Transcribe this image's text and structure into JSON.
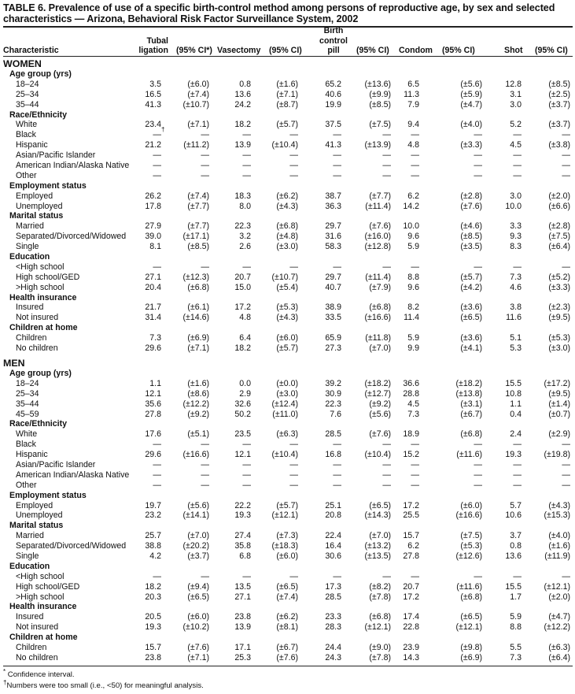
{
  "title": "TABLE 6. Prevalence of use of a specific birth-control method among persons of reproductive age, by sex and selected characteristics — Arizona, Behavioral Risk Factor Surveillance System, 2002",
  "headers": {
    "characteristic": "Characteristic",
    "tubal_1": "Tubal",
    "tubal_2": "ligation",
    "ci_first": "(95% CI*)",
    "vasectomy": "Vasectomy",
    "ci": "(95% CI)",
    "pill_1": "Birth",
    "pill_2": "control",
    "pill_3": "pill",
    "condom": "Condom",
    "shot": "Shot"
  },
  "sections": [
    {
      "title": "WOMEN",
      "groups": [
        {
          "label": "Age group (yrs)",
          "rows": [
            {
              "label": "18–24",
              "values": [
                "3.5",
                "(±6.0)",
                "0.8",
                "(±1.6)",
                "65.2",
                "(±13.6)",
                "6.5",
                "(±5.6)",
                "12.8",
                "(±8.5)"
              ]
            },
            {
              "label": "25–34",
              "values": [
                "16.5",
                "(±7.4)",
                "13.6",
                "(±7.1)",
                "40.6",
                "(±9.9)",
                "11.3",
                "(±5.9)",
                "3.1",
                "(±2.5)"
              ]
            },
            {
              "label": "35–44",
              "values": [
                "41.3",
                "(±10.7)",
                "24.2",
                "(±8.7)",
                "19.9",
                "(±8.5)",
                "7.9",
                "(±4.7)",
                "3.0",
                "(±3.7)"
              ]
            }
          ]
        },
        {
          "label": "Race/Ethnicity",
          "rows": [
            {
              "label": "White",
              "values": [
                "23.4",
                "(±7.1)",
                "18.2",
                "(±5.7)",
                "37.5",
                "(±7.5)",
                "9.4",
                "(±4.0)",
                "5.2",
                "(±3.7)"
              ]
            },
            {
              "label": "Black",
              "values": [
                "—",
                "—",
                "—",
                "—",
                "—",
                "—",
                "—",
                "—",
                "—",
                "—"
              ],
              "mark": "†"
            },
            {
              "label": "Hispanic",
              "values": [
                "21.2",
                "(±11.2)",
                "13.9",
                "(±10.4)",
                "41.3",
                "(±13.9)",
                "4.8",
                "(±3.3)",
                "4.5",
                "(±3.8)"
              ]
            },
            {
              "label": "Asian/Pacific Islander",
              "values": [
                "—",
                "—",
                "—",
                "—",
                "—",
                "—",
                "—",
                "—",
                "—",
                "—"
              ]
            },
            {
              "label": "American Indian/Alaska Native",
              "values": [
                "—",
                "—",
                "—",
                "—",
                "—",
                "—",
                "—",
                "—",
                "—",
                "—"
              ]
            },
            {
              "label": "Other",
              "values": [
                "—",
                "—",
                "—",
                "—",
                "—",
                "—",
                "—",
                "—",
                "—",
                "—"
              ]
            }
          ]
        },
        {
          "label": "Employment status",
          "rows": [
            {
              "label": "Employed",
              "values": [
                "26.2",
                "(±7.4)",
                "18.3",
                "(±6.2)",
                "38.7",
                "(±7.7)",
                "6.2",
                "(±2.8)",
                "3.0",
                "(±2.0)"
              ]
            },
            {
              "label": "Unemployed",
              "values": [
                "17.8",
                "(±7.7)",
                "8.0",
                "(±4.3)",
                "36.3",
                "(±11.4)",
                "14.2",
                "(±7.6)",
                "10.0",
                "(±6.6)"
              ]
            }
          ]
        },
        {
          "label": "Marital status",
          "rows": [
            {
              "label": "Married",
              "values": [
                "27.9",
                "(±7.7)",
                "22.3",
                "(±6.8)",
                "29.7",
                "(±7.6)",
                "10.0",
                "(±4.6)",
                "3.3",
                "(±2.8)"
              ]
            },
            {
              "label": "Separated/Divorced/Widowed",
              "values": [
                "39.0",
                "(±17.1)",
                "3.2",
                "(±4.8)",
                "31.6",
                "(±16.0)",
                "9.6",
                "(±8.5)",
                "9.3",
                "(±7.5)"
              ]
            },
            {
              "label": "Single",
              "values": [
                "8.1",
                "(±8.5)",
                "2.6",
                "(±3.0)",
                "58.3",
                "(±12.8)",
                "5.9",
                "(±3.5)",
                "8.3",
                "(±6.4)"
              ]
            }
          ]
        },
        {
          "label": "Education",
          "rows": [
            {
              "label": "<High school",
              "values": [
                "—",
                "—",
                "—",
                "—",
                "—",
                "—",
                "—",
                "—",
                "—",
                "—"
              ]
            },
            {
              "label": "High school/GED",
              "values": [
                "27.1",
                "(±12.3)",
                "20.7",
                "(±10.7)",
                "29.7",
                "(±11.4)",
                "8.8",
                "(±5.7)",
                "7.3",
                "(±5.2)"
              ]
            },
            {
              "label": ">High school",
              "values": [
                "20.4",
                "(±6.8)",
                "15.0",
                "(±5.4)",
                "40.7",
                "(±7.9)",
                "9.6",
                "(±4.2)",
                "4.6",
                "(±3.3)"
              ]
            }
          ]
        },
        {
          "label": "Health insurance",
          "rows": [
            {
              "label": "Insured",
              "values": [
                "21.7",
                "(±6.1)",
                "17.2",
                "(±5.3)",
                "38.9",
                "(±6.8)",
                "8.2",
                "(±3.6)",
                "3.8",
                "(±2.3)"
              ]
            },
            {
              "label": "Not insured",
              "values": [
                "31.4",
                "(±14.6)",
                "4.8",
                "(±4.3)",
                "33.5",
                "(±16.6)",
                "11.4",
                "(±6.5)",
                "11.6",
                "(±9.5)"
              ]
            }
          ]
        },
        {
          "label": "Children at home",
          "rows": [
            {
              "label": "Children",
              "values": [
                "7.3",
                "(±6.9)",
                "6.4",
                "(±6.0)",
                "65.9",
                "(±11.8)",
                "5.9",
                "(±3.6)",
                "5.1",
                "(±5.3)"
              ]
            },
            {
              "label": "No children",
              "values": [
                "29.6",
                "(±7.1)",
                "18.2",
                "(±5.7)",
                "27.3",
                "(±7.0)",
                "9.9",
                "(±4.1)",
                "5.3",
                "(±3.0)"
              ]
            }
          ]
        }
      ]
    },
    {
      "title": "MEN",
      "groups": [
        {
          "label": "Age group (yrs)",
          "rows": [
            {
              "label": "18–24",
              "values": [
                "1.1",
                "(±1.6)",
                "0.0",
                "(±0.0)",
                "39.2",
                "(±18.2)",
                "36.6",
                "(±18.2)",
                "15.5",
                "(±17.2)"
              ]
            },
            {
              "label": "25–34",
              "values": [
                "12.1",
                "(±8.6)",
                "2.9",
                "(±3.0)",
                "30.9",
                "(±12.7)",
                "28.8",
                "(±13.8)",
                "10.8",
                "(±9.5)"
              ]
            },
            {
              "label": "35–44",
              "values": [
                "35.6",
                "(±12.2)",
                "32.6",
                "(±12.4)",
                "22.3",
                "(±9.2)",
                "4.5",
                "(±3.1)",
                "1.1",
                "(±1.4)"
              ]
            },
            {
              "label": "45–59",
              "values": [
                "27.8",
                "(±9.2)",
                "50.2",
                "(±11.0)",
                "7.6",
                "(±5.6)",
                "7.3",
                "(±6.7)",
                "0.4",
                "(±0.7)"
              ]
            }
          ]
        },
        {
          "label": "Race/Ethnicity",
          "rows": [
            {
              "label": "White",
              "values": [
                "17.6",
                "(±5.1)",
                "23.5",
                "(±6.3)",
                "28.5",
                "(±7.6)",
                "18.9",
                "(±6.8)",
                "2.4",
                "(±2.9)"
              ]
            },
            {
              "label": "Black",
              "values": [
                "—",
                "—",
                "—",
                "—",
                "—",
                "—",
                "—",
                "—",
                "—",
                "—"
              ]
            },
            {
              "label": "Hispanic",
              "values": [
                "29.6",
                "(±16.6)",
                "12.1",
                "(±10.4)",
                "16.8",
                "(±10.4)",
                "15.2",
                "(±11.6)",
                "19.3",
                "(±19.8)"
              ]
            },
            {
              "label": "Asian/Pacific Islander",
              "values": [
                "—",
                "—",
                "—",
                "—",
                "—",
                "—",
                "—",
                "—",
                "—",
                "—"
              ]
            },
            {
              "label": "American Indian/Alaska Native",
              "values": [
                "—",
                "—",
                "—",
                "—",
                "—",
                "—",
                "—",
                "—",
                "—",
                "—"
              ]
            },
            {
              "label": "Other",
              "values": [
                "—",
                "—",
                "—",
                "—",
                "—",
                "—",
                "—",
                "—",
                "—",
                "—"
              ]
            }
          ]
        },
        {
          "label": "Employment status",
          "rows": [
            {
              "label": "Employed",
              "values": [
                "19.7",
                "(±5.6)",
                "22.2",
                "(±5.7)",
                "25.1",
                "(±6.5)",
                "17.2",
                "(±6.0)",
                "5.7",
                "(±4.3)"
              ]
            },
            {
              "label": "Unemployed",
              "values": [
                "23.2",
                "(±14.1)",
                "19.3",
                "(±12.1)",
                "20.8",
                "(±14.3)",
                "25.5",
                "(±16.6)",
                "10.6",
                "(±15.3)"
              ]
            }
          ]
        },
        {
          "label": "Marital status",
          "rows": [
            {
              "label": "Married",
              "values": [
                "25.7",
                "(±7.0)",
                "27.4",
                "(±7.3)",
                "22.4",
                "(±7.0)",
                "15.7",
                "(±7.5)",
                "3.7",
                "(±4.0)"
              ]
            },
            {
              "label": "Separated/Divorced/Widowed",
              "values": [
                "38.8",
                "(±20.2)",
                "35.8",
                "(±18.3)",
                "16.4",
                "(±13.2)",
                "6.2",
                "(±5.3)",
                "0.8",
                "(±1.6)"
              ]
            },
            {
              "label": "Single",
              "values": [
                "4.2",
                "(±3.7)",
                "6.8",
                "(±6.0)",
                "30.6",
                "(±13.5)",
                "27.8",
                "(±12.6)",
                "13.6",
                "(±11.9)"
              ]
            }
          ]
        },
        {
          "label": "Education",
          "rows": [
            {
              "label": "<High school",
              "values": [
                "—",
                "—",
                "—",
                "—",
                "—",
                "—",
                "—",
                "—",
                "—",
                "—"
              ]
            },
            {
              "label": "High school/GED",
              "values": [
                "18.2",
                "(±9.4)",
                "13.5",
                "(±6.5)",
                "17.3",
                "(±8.2)",
                "20.7",
                "(±11.6)",
                "15.5",
                "(±12.1)"
              ]
            },
            {
              "label": ">High school",
              "values": [
                "20.3",
                "(±6.5)",
                "27.1",
                "(±7.4)",
                "28.5",
                "(±7.8)",
                "17.2",
                "(±6.8)",
                "1.7",
                "(±2.0)"
              ]
            }
          ]
        },
        {
          "label": "Health insurance",
          "rows": [
            {
              "label": "Insured",
              "values": [
                "20.5",
                "(±6.0)",
                "23.8",
                "(±6.2)",
                "23.3",
                "(±6.8)",
                "17.4",
                "(±6.5)",
                "5.9",
                "(±4.7)"
              ]
            },
            {
              "label": "Not insured",
              "values": [
                "19.3",
                "(±10.2)",
                "13.9",
                "(±8.1)",
                "28.3",
                "(±12.1)",
                "22.8",
                "(±12.1)",
                "8.8",
                "(±12.2)"
              ]
            }
          ]
        },
        {
          "label": "Children at home",
          "rows": [
            {
              "label": "Children",
              "values": [
                "15.7",
                "(±7.6)",
                "17.1",
                "(±6.7)",
                "24.4",
                "(±9.0)",
                "23.9",
                "(±9.8)",
                "5.5",
                "(±6.3)"
              ]
            },
            {
              "label": "No children",
              "values": [
                "23.8",
                "(±7.1)",
                "25.3",
                "(±7.6)",
                "24.3",
                "(±7.8)",
                "14.3",
                "(±6.9)",
                "7.3",
                "(±6.4)"
              ]
            }
          ]
        }
      ]
    }
  ],
  "footnotes": [
    {
      "mark": "*",
      "text": " Confidence interval."
    },
    {
      "mark": "†",
      "text": "Numbers were too small (i.e., <50) for meaningful analysis."
    }
  ]
}
